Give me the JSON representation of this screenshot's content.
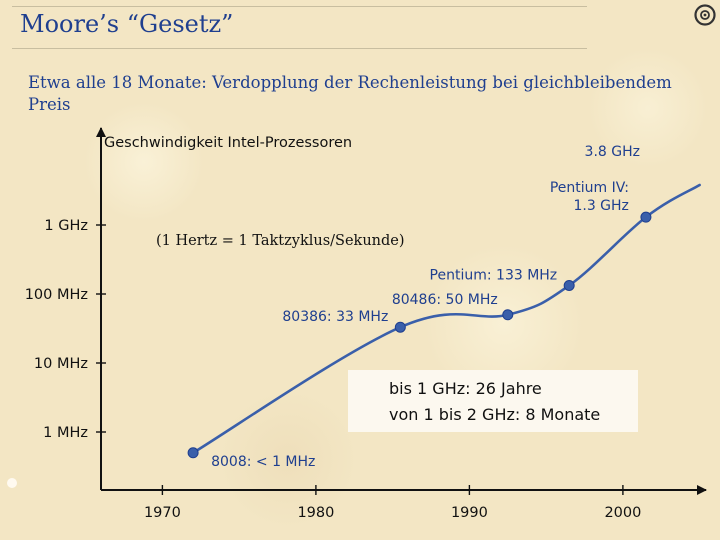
{
  "slide": {
    "title": "Moore’s “Gesetz”",
    "subtitle": "Etwa alle 18 Monate: Verdopplung der Rechenleistung bei gleichbleibendem Preis",
    "note": "(1 Hertz = 1 Taktzyklus/Sekunde)",
    "info_box": {
      "line1": "bis 1 GHz: 26 Jahre",
      "line2": "von 1 bis 2 GHz: 8 Monate"
    }
  },
  "chart_data": {
    "type": "line",
    "title": "Geschwindigkeit Intel-Prozessoren",
    "xlabel": "",
    "ylabel": "",
    "y_scale": "log",
    "xlim": [
      1966,
      2010
    ],
    "ylim_mhz": [
      0.08,
      30000
    ],
    "x_ticks": [
      {
        "value": 1970,
        "label": "1970"
      },
      {
        "value": 1980,
        "label": "1980"
      },
      {
        "value": 1990,
        "label": "1990"
      },
      {
        "value": 2000,
        "label": "2000"
      }
    ],
    "y_ticks": [
      {
        "value_mhz": 1,
        "label": "1 MHz"
      },
      {
        "value_mhz": 10,
        "label": "10 MHz"
      },
      {
        "value_mhz": 100,
        "label": "100 MHz"
      },
      {
        "value_mhz": 1000,
        "label": "1 GHz"
      }
    ],
    "series": [
      {
        "color": "#3a5faa",
        "points": [
          {
            "year": 1972,
            "mhz": 0.5,
            "label": "8008: < 1 MHz",
            "marker": true
          },
          {
            "year": 1985.5,
            "mhz": 33,
            "label": "80386: 33 MHz",
            "marker": true
          },
          {
            "year": 1992.5,
            "mhz": 50,
            "label": "80486: 50 MHz",
            "marker": true
          },
          {
            "year": 1996.5,
            "mhz": 133,
            "label": "Pentium: 133 MHz",
            "marker": true
          },
          {
            "year": 2001.5,
            "mhz": 1300,
            "label": "Pentium IV:\n1.3 GHz",
            "marker": true
          },
          {
            "year": 2005,
            "mhz": 3800,
            "label": "3.8 GHz",
            "marker": false
          }
        ]
      }
    ]
  }
}
